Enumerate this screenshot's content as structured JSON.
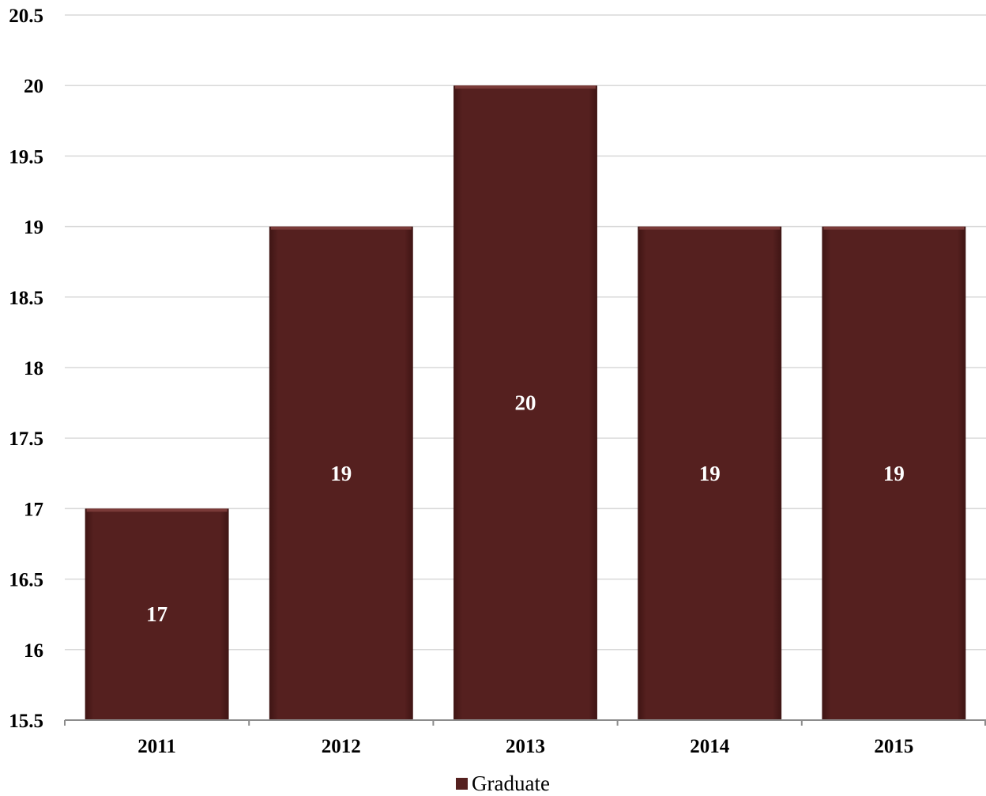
{
  "chart_data": {
    "type": "bar",
    "categories": [
      "2011",
      "2012",
      "2013",
      "2014",
      "2015"
    ],
    "series": [
      {
        "name": "Graduate",
        "values": [
          17,
          19,
          20,
          19,
          19
        ]
      }
    ],
    "data_labels": [
      "17",
      "19",
      "20",
      "19",
      "19"
    ],
    "y_ticks": [
      "15.5",
      "16",
      "16.5",
      "17",
      "17.5",
      "18",
      "18.5",
      "19",
      "19.5",
      "20",
      "20.5"
    ],
    "ylim": [
      15.5,
      20.5
    ],
    "y_step": 0.5,
    "grid": true,
    "legend_position": "bottom",
    "title": "",
    "xlabel": "",
    "ylabel": "",
    "colors": {
      "bar": "#55201f",
      "bar_highlight": "#7a3a38",
      "grid": "#d9d9d9",
      "axis": "#8c8c8c"
    }
  }
}
